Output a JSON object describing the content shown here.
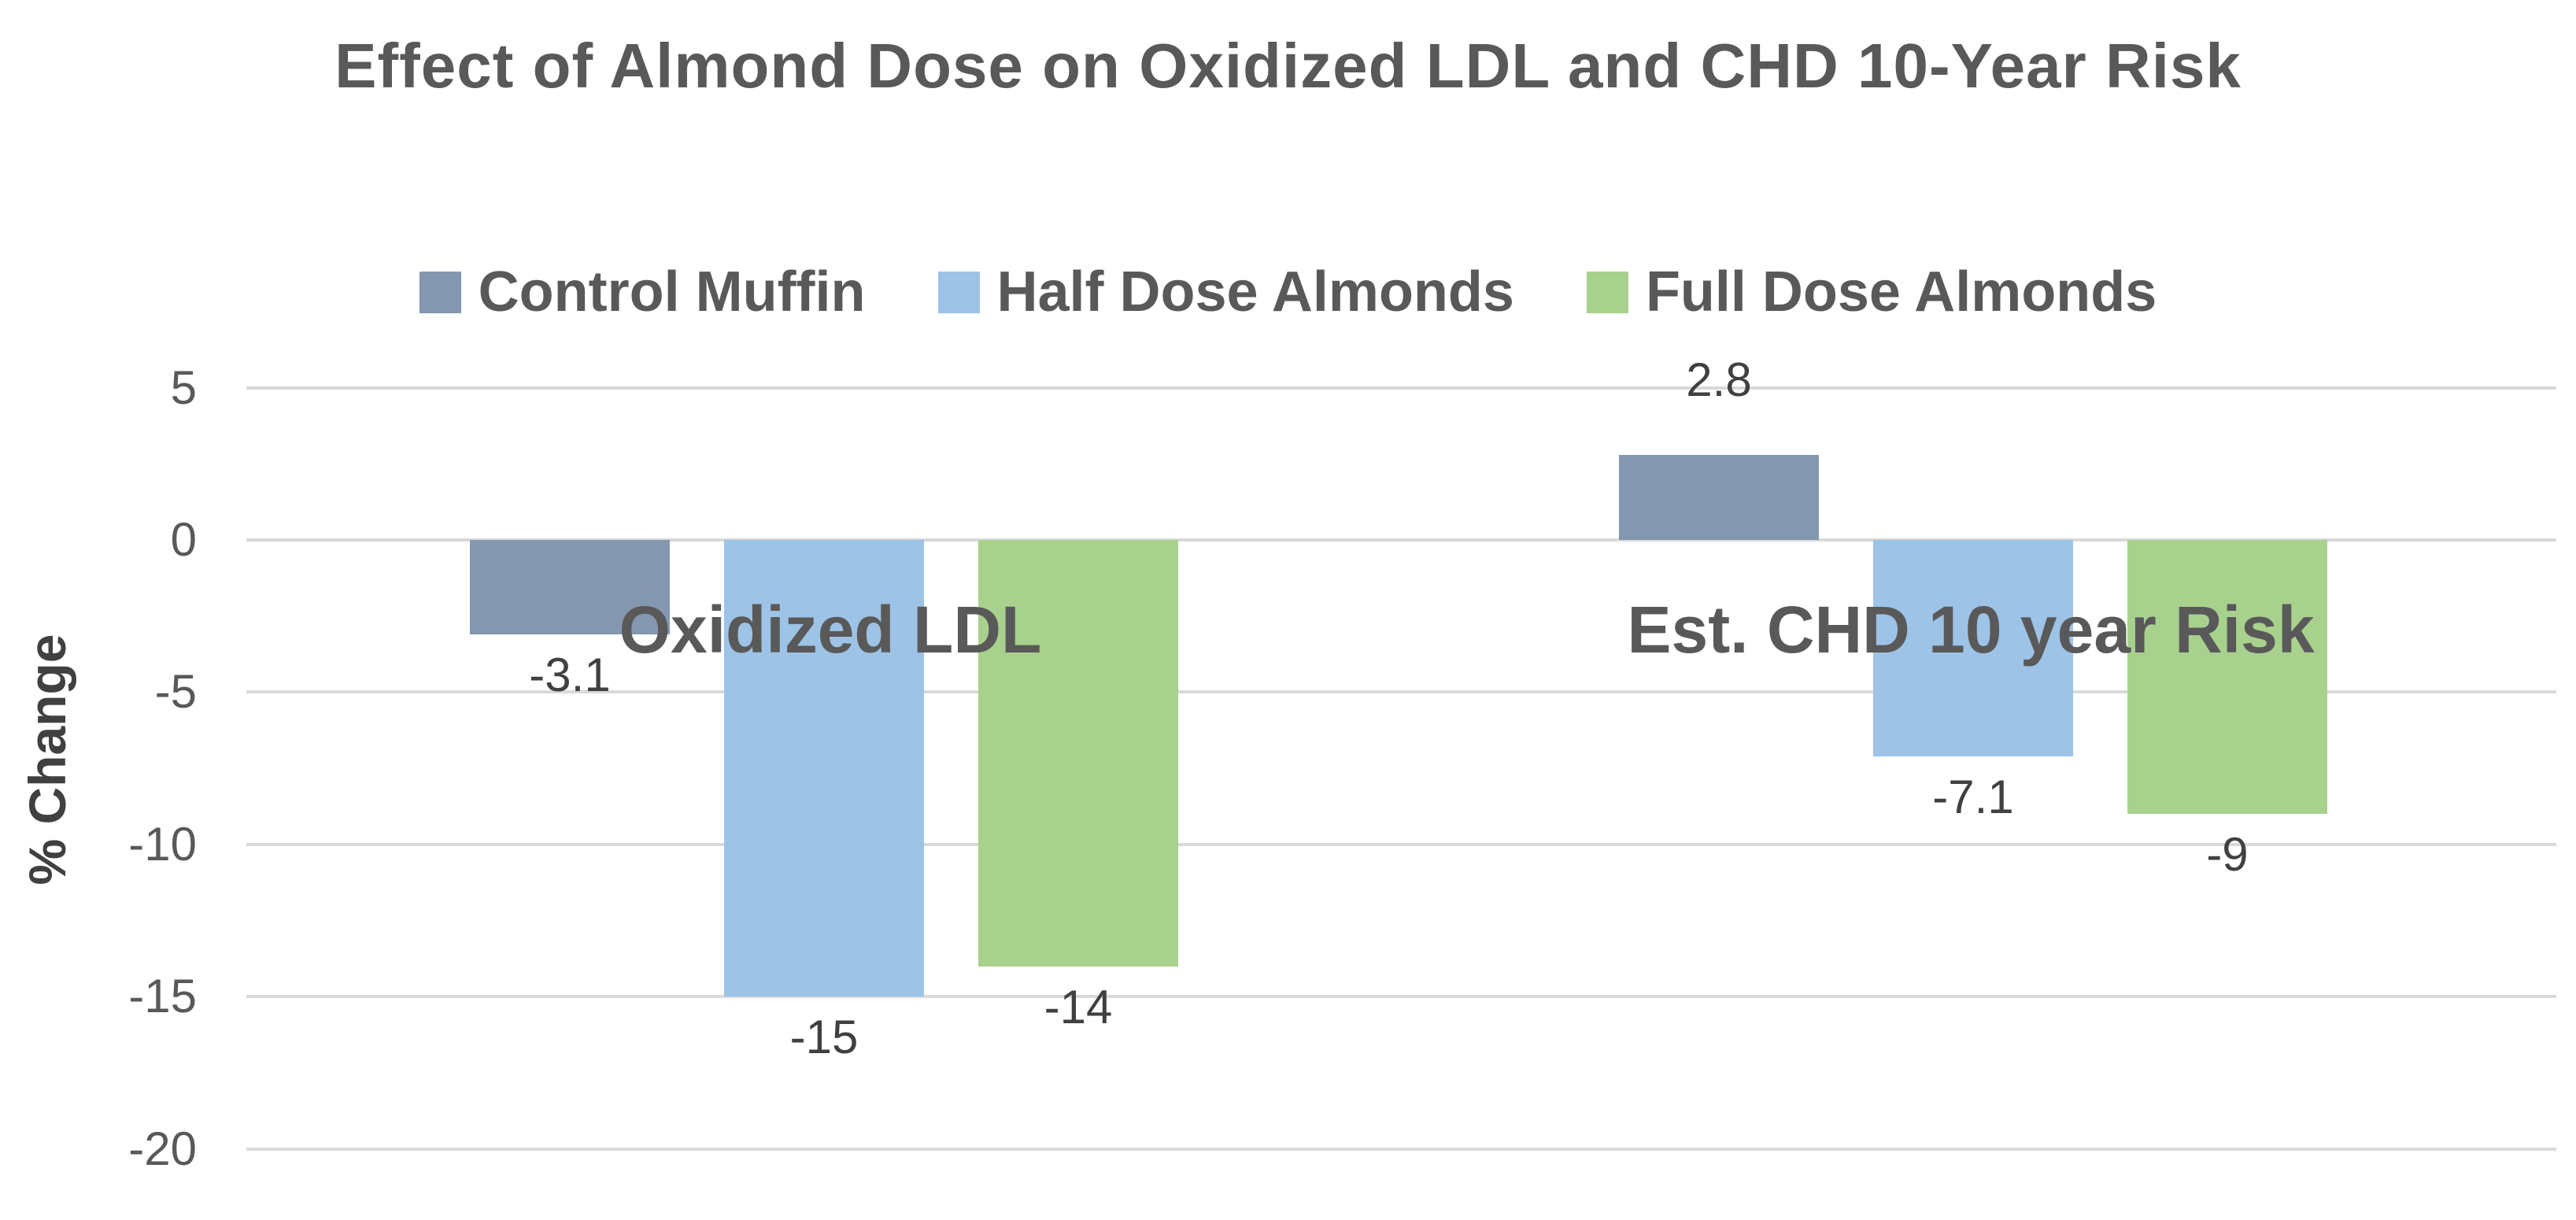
{
  "chart_data": {
    "type": "bar",
    "title": "Effect of Almond Dose on Oxidized LDL and CHD 10-Year Risk",
    "ylabel": "% Change",
    "categories": [
      "Oxidized LDL",
      "Est. CHD 10 year Risk"
    ],
    "series": [
      {
        "name": "Control Muffin",
        "color": "#8497B0",
        "values": [
          -3.1,
          2.8
        ],
        "value_labels": [
          "-3.1",
          "2.8"
        ]
      },
      {
        "name": "Half Dose Almonds",
        "color": "#9DC3E6",
        "values": [
          -15,
          -7.1
        ],
        "value_labels": [
          "-15",
          "-7.1"
        ]
      },
      {
        "name": "Full Dose Almonds",
        "color": "#A9D18E",
        "values": [
          -14,
          -9
        ],
        "value_labels": [
          "-14",
          "-9"
        ]
      }
    ],
    "yticks": [
      5,
      0,
      -5,
      -10,
      -15,
      -20
    ],
    "ylim": [
      -20,
      5
    ],
    "grid": true,
    "legend_position": "top",
    "gridline_color": "#D9D9D9",
    "title_color": "#595959",
    "label_color": "#404040"
  }
}
